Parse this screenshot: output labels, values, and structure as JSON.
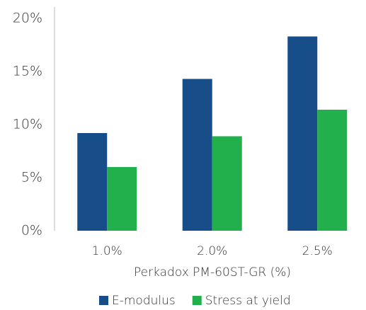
{
  "chart_data": {
    "type": "bar",
    "x_label": "Perkadox PM-60ST-GR (%)",
    "categories": [
      "1.0%",
      "2.0%",
      "2.5%"
    ],
    "series": [
      {
        "name": "E-modulus",
        "color": "#174e8a",
        "values": [
          9.2,
          14.3,
          18.3
        ]
      },
      {
        "name": "Stress at yield",
        "color": "#21b04b",
        "values": [
          6.0,
          8.9,
          11.4
        ]
      }
    ],
    "ylim": [
      0,
      20
    ],
    "yticks": [
      {
        "value": 0,
        "label": "0%"
      },
      {
        "value": 5,
        "label": "5%"
      },
      {
        "value": 10,
        "label": "10%"
      },
      {
        "value": 15,
        "label": "15%"
      },
      {
        "value": 20,
        "label": "20%"
      }
    ],
    "grid": false,
    "legend": "bottom"
  }
}
